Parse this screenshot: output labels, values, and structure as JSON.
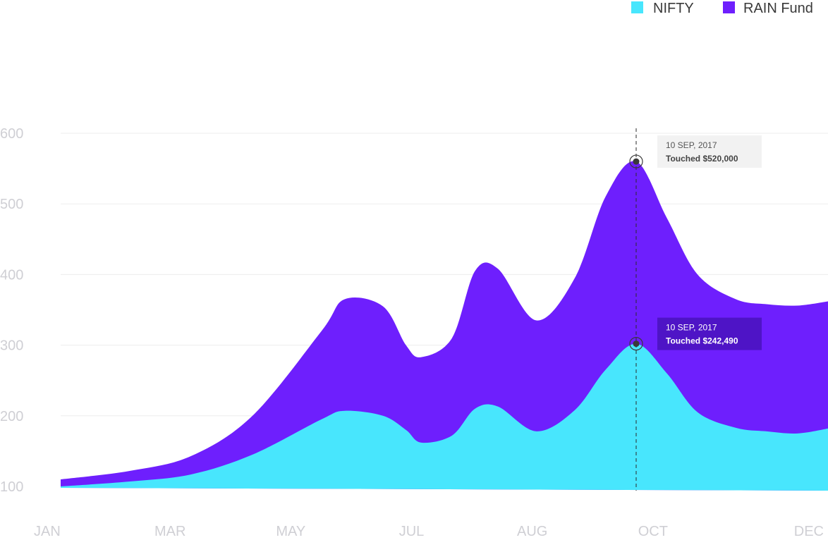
{
  "chart_data": {
    "type": "area",
    "stacked": true,
    "title": "",
    "xlabel": "",
    "ylabel": "",
    "x_ticks": [
      "JAN",
      "MAR",
      "MAY",
      "JUL",
      "AUG",
      "OCT",
      "DEC"
    ],
    "y_ticks": [
      100,
      200,
      300,
      400,
      500,
      600
    ],
    "ylim": [
      94,
      600
    ],
    "grid": true,
    "legend_position": "top-right",
    "series": [
      {
        "name": "NIFTY",
        "color": "#48e6fd",
        "points": [
          [
            0.0,
            100
          ],
          [
            0.09,
            107
          ],
          [
            0.17,
            117
          ],
          [
            0.25,
            145
          ],
          [
            0.34,
            195
          ],
          [
            0.37,
            207
          ],
          [
            0.42,
            200
          ],
          [
            0.45,
            180
          ],
          [
            0.47,
            162
          ],
          [
            0.51,
            172
          ],
          [
            0.54,
            210
          ],
          [
            0.57,
            213
          ],
          [
            0.62,
            178
          ],
          [
            0.67,
            208
          ],
          [
            0.71,
            265
          ],
          [
            0.75,
            302
          ],
          [
            0.79,
            260
          ],
          [
            0.83,
            205
          ],
          [
            0.88,
            183
          ],
          [
            0.92,
            178
          ],
          [
            0.96,
            175
          ],
          [
            1.0,
            182
          ]
        ]
      },
      {
        "name": "RAIN Fund",
        "color": "#6e1ffd",
        "points": [
          [
            0.0,
            110
          ],
          [
            0.09,
            122
          ],
          [
            0.17,
            143
          ],
          [
            0.25,
            200
          ],
          [
            0.34,
            320
          ],
          [
            0.37,
            365
          ],
          [
            0.42,
            355
          ],
          [
            0.45,
            300
          ],
          [
            0.47,
            283
          ],
          [
            0.51,
            310
          ],
          [
            0.54,
            405
          ],
          [
            0.57,
            408
          ],
          [
            0.62,
            335
          ],
          [
            0.67,
            395
          ],
          [
            0.71,
            510
          ],
          [
            0.75,
            560
          ],
          [
            0.79,
            480
          ],
          [
            0.83,
            400
          ],
          [
            0.88,
            365
          ],
          [
            0.92,
            358
          ],
          [
            0.96,
            356
          ],
          [
            1.0,
            362
          ]
        ]
      }
    ],
    "annotations": [
      {
        "series": "RAIN Fund",
        "x": 0.75,
        "y": 560,
        "date": "10 SEP, 2017",
        "text": "Touched $520,000",
        "style": "light"
      },
      {
        "series": "NIFTY",
        "x": 0.75,
        "y": 302,
        "date": "10 SEP, 2017",
        "text": "Touched $242,490",
        "style": "dark"
      }
    ],
    "colors": {
      "tooltip_light_bg": "#f2f2f2",
      "tooltip_dark_bg": "#4e14c6",
      "marker": "#3a3a3a"
    }
  }
}
